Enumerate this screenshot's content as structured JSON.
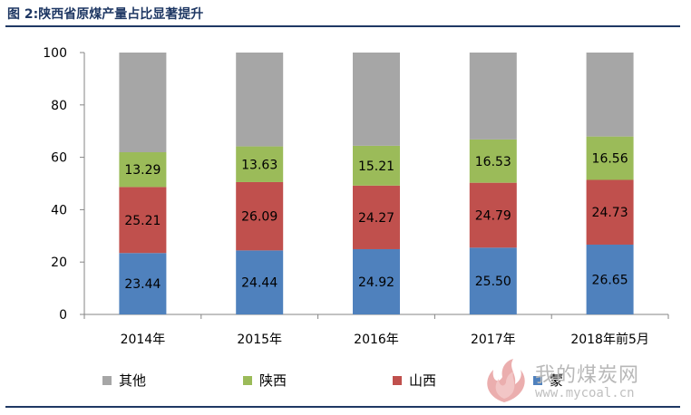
{
  "title": "图 2:陕西省原煤产量占比显著提升",
  "watermark": {
    "name": "我的煤炭网",
    "url": "www.mycoal.cn"
  },
  "chart_data": {
    "type": "bar",
    "stacked": true,
    "categories": [
      "2014年",
      "2015年",
      "2016年",
      "2017年",
      "2018年前5月"
    ],
    "ylim": [
      0,
      100
    ],
    "yticks": [
      0,
      20,
      40,
      60,
      80,
      100
    ],
    "grid": false,
    "legend_position": "bottom",
    "series": [
      {
        "name": "蒙",
        "color": "#4f81bd",
        "values": [
          23.44,
          24.44,
          24.92,
          25.5,
          26.65
        ]
      },
      {
        "name": "山西",
        "color": "#c0504d",
        "values": [
          25.21,
          26.09,
          24.27,
          24.79,
          24.73
        ]
      },
      {
        "name": "陕西",
        "color": "#9bbb59",
        "values": [
          13.29,
          13.63,
          15.21,
          16.53,
          16.56
        ]
      },
      {
        "name": "其他",
        "color": "#a6a6a6",
        "values": [
          38.06,
          35.84,
          35.6,
          33.18,
          32.06
        ]
      }
    ],
    "data_labels": [
      [
        "23.44",
        "24.44",
        "24.92",
        "25.50",
        "26.65"
      ],
      [
        "25.21",
        "26.09",
        "24.27",
        "24.79",
        "24.73"
      ],
      [
        "13.29",
        "13.63",
        "15.21",
        "16.53",
        "16.56"
      ]
    ],
    "legend_order": [
      "其他",
      "陕西",
      "山西",
      "蒙"
    ]
  }
}
